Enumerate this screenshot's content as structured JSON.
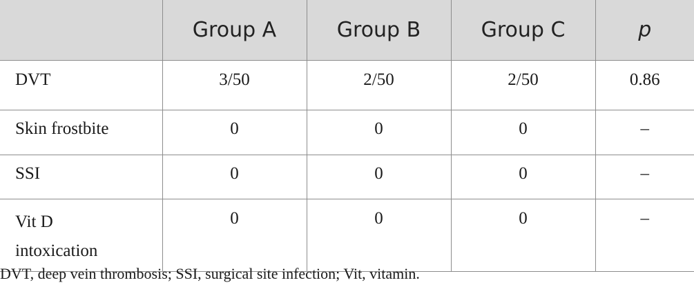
{
  "table": {
    "headers": [
      "",
      "Group A",
      "Group B",
      "Group C",
      "p"
    ],
    "rows": [
      {
        "label": "DVT",
        "a": "3/50",
        "b": "2/50",
        "c": "2/50",
        "p": "0.86"
      },
      {
        "label": "Skin frostbite",
        "a": "0",
        "b": "0",
        "c": "0",
        "p": "–"
      },
      {
        "label": "SSI",
        "a": "0",
        "b": "0",
        "c": "0",
        "p": "–"
      },
      {
        "label_line1": "Vit D",
        "label_line2": "intoxication",
        "a": "0",
        "b": "0",
        "c": "0",
        "p": "–"
      }
    ]
  },
  "footnote": "DVT, deep vein thrombosis; SSI, surgical site infection; Vit, vitamin."
}
